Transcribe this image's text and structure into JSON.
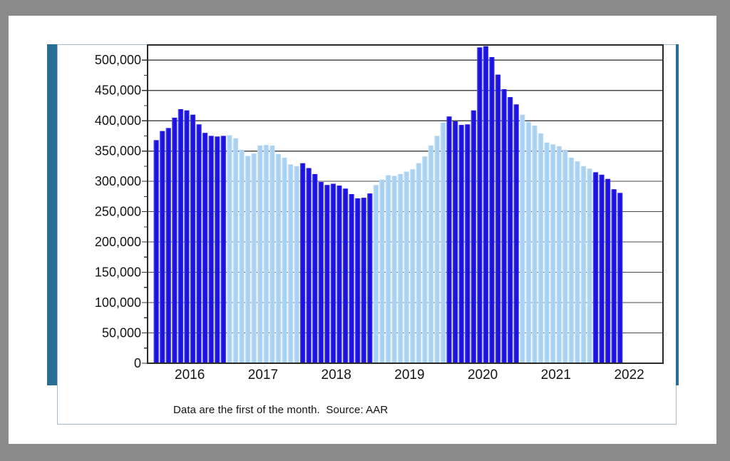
{
  "window": {
    "background": "#8a8a8a",
    "slide_background": "#ffffff",
    "accent_color": "#2b6e95"
  },
  "chart_data": {
    "type": "bar",
    "note": "Data are the first of the month.  Source: AAR",
    "grid": "horizontal",
    "legend": "none",
    "ylim": [
      0,
      525000
    ],
    "y_ticks": [
      {
        "value": 0,
        "label": "0"
      },
      {
        "value": 50000,
        "label": "50,000"
      },
      {
        "value": 100000,
        "label": "100,000"
      },
      {
        "value": 150000,
        "label": "150,000"
      },
      {
        "value": 200000,
        "label": "200,000"
      },
      {
        "value": 250000,
        "label": "250,000"
      },
      {
        "value": 300000,
        "label": "300,000"
      },
      {
        "value": 350000,
        "label": "350,000"
      },
      {
        "value": 400000,
        "label": "400,000"
      },
      {
        "value": 450000,
        "label": "450,000"
      },
      {
        "value": 500000,
        "label": "500,000"
      }
    ],
    "bar_colors": {
      "dark": "#1c12e0",
      "light": "#a9d2f2"
    },
    "categories_note": "monthly bars, first of month, Jan 2016 through May 2022",
    "series": [
      {
        "year": "2016",
        "color": "dark",
        "values": [
          368000,
          383000,
          388000,
          405000,
          419000,
          417000,
          410000,
          394000,
          380000,
          375000,
          374000,
          375000
        ]
      },
      {
        "year": "2017",
        "color": "light",
        "values": [
          376000,
          371000,
          352000,
          342000,
          346000,
          359000,
          360000,
          359000,
          345000,
          339000,
          328000,
          325000
        ]
      },
      {
        "year": "2018",
        "color": "dark",
        "values": [
          330000,
          322000,
          312000,
          299000,
          294000,
          296000,
          293000,
          288000,
          279000,
          272000,
          273000,
          280000
        ]
      },
      {
        "year": "2019",
        "color": "light",
        "values": [
          294000,
          303000,
          310000,
          309000,
          312000,
          316000,
          320000,
          330000,
          341000,
          359000,
          375000,
          397000
        ]
      },
      {
        "year": "2020",
        "color": "dark",
        "values": [
          407000,
          399000,
          393000,
          394000,
          417000,
          521000,
          523000,
          505000,
          476000,
          452000,
          439000,
          427000
        ]
      },
      {
        "year": "2021",
        "color": "light",
        "values": [
          410000,
          398000,
          392000,
          379000,
          364000,
          361000,
          358000,
          352000,
          339000,
          333000,
          325000,
          321000
        ]
      },
      {
        "year": "2022",
        "color": "dark",
        "values": [
          315000,
          311000,
          304000,
          287000,
          281000
        ]
      }
    ]
  }
}
